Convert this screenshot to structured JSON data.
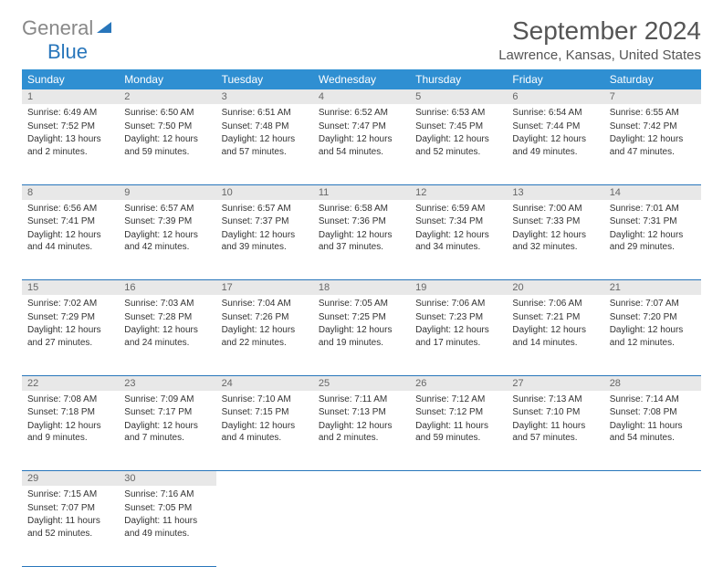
{
  "brand": {
    "part1": "General",
    "part2": "Blue"
  },
  "title": "September 2024",
  "location": "Lawrence, Kansas, United States",
  "colors": {
    "header_bg": "#2f8fd2",
    "border": "#2876bb",
    "daynum_bg": "#e8e8e8",
    "logo_gray": "#888888",
    "logo_blue": "#2876bb"
  },
  "day_headers": [
    "Sunday",
    "Monday",
    "Tuesday",
    "Wednesday",
    "Thursday",
    "Friday",
    "Saturday"
  ],
  "weeks": [
    [
      {
        "n": "1",
        "sr": "Sunrise: 6:49 AM",
        "ss": "Sunset: 7:52 PM",
        "dl": "Daylight: 13 hours and 2 minutes."
      },
      {
        "n": "2",
        "sr": "Sunrise: 6:50 AM",
        "ss": "Sunset: 7:50 PM",
        "dl": "Daylight: 12 hours and 59 minutes."
      },
      {
        "n": "3",
        "sr": "Sunrise: 6:51 AM",
        "ss": "Sunset: 7:48 PM",
        "dl": "Daylight: 12 hours and 57 minutes."
      },
      {
        "n": "4",
        "sr": "Sunrise: 6:52 AM",
        "ss": "Sunset: 7:47 PM",
        "dl": "Daylight: 12 hours and 54 minutes."
      },
      {
        "n": "5",
        "sr": "Sunrise: 6:53 AM",
        "ss": "Sunset: 7:45 PM",
        "dl": "Daylight: 12 hours and 52 minutes."
      },
      {
        "n": "6",
        "sr": "Sunrise: 6:54 AM",
        "ss": "Sunset: 7:44 PM",
        "dl": "Daylight: 12 hours and 49 minutes."
      },
      {
        "n": "7",
        "sr": "Sunrise: 6:55 AM",
        "ss": "Sunset: 7:42 PM",
        "dl": "Daylight: 12 hours and 47 minutes."
      }
    ],
    [
      {
        "n": "8",
        "sr": "Sunrise: 6:56 AM",
        "ss": "Sunset: 7:41 PM",
        "dl": "Daylight: 12 hours and 44 minutes."
      },
      {
        "n": "9",
        "sr": "Sunrise: 6:57 AM",
        "ss": "Sunset: 7:39 PM",
        "dl": "Daylight: 12 hours and 42 minutes."
      },
      {
        "n": "10",
        "sr": "Sunrise: 6:57 AM",
        "ss": "Sunset: 7:37 PM",
        "dl": "Daylight: 12 hours and 39 minutes."
      },
      {
        "n": "11",
        "sr": "Sunrise: 6:58 AM",
        "ss": "Sunset: 7:36 PM",
        "dl": "Daylight: 12 hours and 37 minutes."
      },
      {
        "n": "12",
        "sr": "Sunrise: 6:59 AM",
        "ss": "Sunset: 7:34 PM",
        "dl": "Daylight: 12 hours and 34 minutes."
      },
      {
        "n": "13",
        "sr": "Sunrise: 7:00 AM",
        "ss": "Sunset: 7:33 PM",
        "dl": "Daylight: 12 hours and 32 minutes."
      },
      {
        "n": "14",
        "sr": "Sunrise: 7:01 AM",
        "ss": "Sunset: 7:31 PM",
        "dl": "Daylight: 12 hours and 29 minutes."
      }
    ],
    [
      {
        "n": "15",
        "sr": "Sunrise: 7:02 AM",
        "ss": "Sunset: 7:29 PM",
        "dl": "Daylight: 12 hours and 27 minutes."
      },
      {
        "n": "16",
        "sr": "Sunrise: 7:03 AM",
        "ss": "Sunset: 7:28 PM",
        "dl": "Daylight: 12 hours and 24 minutes."
      },
      {
        "n": "17",
        "sr": "Sunrise: 7:04 AM",
        "ss": "Sunset: 7:26 PM",
        "dl": "Daylight: 12 hours and 22 minutes."
      },
      {
        "n": "18",
        "sr": "Sunrise: 7:05 AM",
        "ss": "Sunset: 7:25 PM",
        "dl": "Daylight: 12 hours and 19 minutes."
      },
      {
        "n": "19",
        "sr": "Sunrise: 7:06 AM",
        "ss": "Sunset: 7:23 PM",
        "dl": "Daylight: 12 hours and 17 minutes."
      },
      {
        "n": "20",
        "sr": "Sunrise: 7:06 AM",
        "ss": "Sunset: 7:21 PM",
        "dl": "Daylight: 12 hours and 14 minutes."
      },
      {
        "n": "21",
        "sr": "Sunrise: 7:07 AM",
        "ss": "Sunset: 7:20 PM",
        "dl": "Daylight: 12 hours and 12 minutes."
      }
    ],
    [
      {
        "n": "22",
        "sr": "Sunrise: 7:08 AM",
        "ss": "Sunset: 7:18 PM",
        "dl": "Daylight: 12 hours and 9 minutes."
      },
      {
        "n": "23",
        "sr": "Sunrise: 7:09 AM",
        "ss": "Sunset: 7:17 PM",
        "dl": "Daylight: 12 hours and 7 minutes."
      },
      {
        "n": "24",
        "sr": "Sunrise: 7:10 AM",
        "ss": "Sunset: 7:15 PM",
        "dl": "Daylight: 12 hours and 4 minutes."
      },
      {
        "n": "25",
        "sr": "Sunrise: 7:11 AM",
        "ss": "Sunset: 7:13 PM",
        "dl": "Daylight: 12 hours and 2 minutes."
      },
      {
        "n": "26",
        "sr": "Sunrise: 7:12 AM",
        "ss": "Sunset: 7:12 PM",
        "dl": "Daylight: 11 hours and 59 minutes."
      },
      {
        "n": "27",
        "sr": "Sunrise: 7:13 AM",
        "ss": "Sunset: 7:10 PM",
        "dl": "Daylight: 11 hours and 57 minutes."
      },
      {
        "n": "28",
        "sr": "Sunrise: 7:14 AM",
        "ss": "Sunset: 7:08 PM",
        "dl": "Daylight: 11 hours and 54 minutes."
      }
    ],
    [
      {
        "n": "29",
        "sr": "Sunrise: 7:15 AM",
        "ss": "Sunset: 7:07 PM",
        "dl": "Daylight: 11 hours and 52 minutes."
      },
      {
        "n": "30",
        "sr": "Sunrise: 7:16 AM",
        "ss": "Sunset: 7:05 PM",
        "dl": "Daylight: 11 hours and 49 minutes."
      },
      null,
      null,
      null,
      null,
      null
    ]
  ]
}
